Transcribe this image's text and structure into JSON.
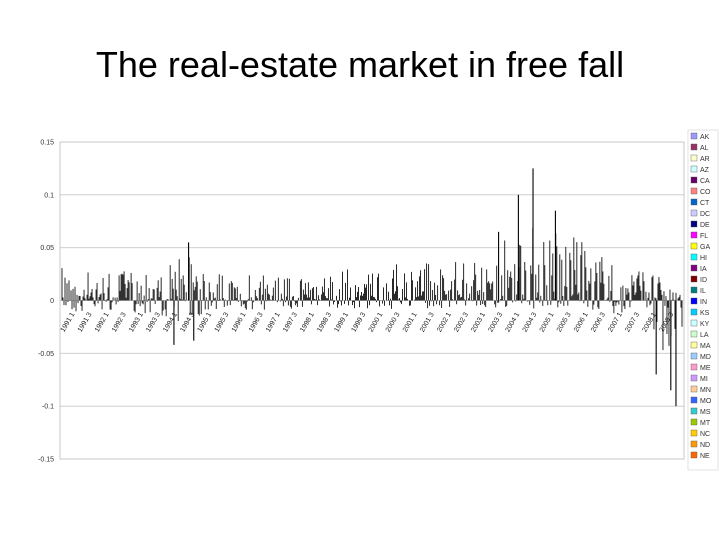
{
  "slide": {
    "title": "The real-estate market in free fall"
  },
  "chart_data": {
    "type": "bar",
    "title": "",
    "xlabel": "",
    "ylabel": "",
    "ylim": [
      -0.15,
      0.15
    ],
    "yticks": [
      0.15,
      0.1,
      0.05,
      0,
      -0.05,
      -0.1,
      -0.15
    ],
    "ytick_labels": [
      "0.15",
      "0.1",
      "0.05",
      "0",
      "-0.05",
      "-0.1",
      "-0.15"
    ],
    "grid": true,
    "legend": "right",
    "categories": [
      "1991 1",
      "1991 3",
      "1992 1",
      "1992 3",
      "1993 1",
      "1993 3",
      "1994 1",
      "1994 3",
      "1995 1",
      "1995 3",
      "1996 1",
      "1996 3",
      "1997 1",
      "1997 3",
      "1998 1",
      "1998 3",
      "1999 1",
      "1999 3",
      "2000 1",
      "2000 3",
      "2001 1",
      "2001 3",
      "2002 1",
      "2002 3",
      "2003 1",
      "2003 3",
      "2004 1",
      "2004 3",
      "2005 1",
      "2005 3",
      "2006 1",
      "2006 3",
      "2007 1",
      "2007 3",
      "2008 1",
      "2008 3"
    ],
    "envelope": {
      "upper": [
        0.035,
        0.03,
        0.03,
        0.028,
        0.03,
        0.03,
        0.035,
        0.05,
        0.03,
        0.028,
        0.027,
        0.025,
        0.025,
        0.026,
        0.026,
        0.028,
        0.03,
        0.032,
        0.035,
        0.035,
        0.036,
        0.037,
        0.038,
        0.039,
        0.045,
        0.06,
        0.07,
        0.075,
        0.07,
        0.06,
        0.05,
        0.04,
        0.035,
        0.03,
        0.02,
        0.015
      ],
      "lower": [
        -0.01,
        -0.012,
        -0.01,
        -0.01,
        -0.012,
        -0.012,
        -0.018,
        -0.022,
        -0.012,
        -0.01,
        -0.01,
        -0.01,
        -0.008,
        -0.008,
        -0.008,
        -0.008,
        -0.008,
        -0.008,
        -0.008,
        -0.008,
        -0.008,
        -0.008,
        -0.008,
        -0.008,
        -0.008,
        -0.008,
        -0.008,
        -0.008,
        -0.008,
        -0.008,
        -0.01,
        -0.012,
        -0.015,
        -0.02,
        -0.05,
        -0.075
      ]
    },
    "spikes": [
      {
        "x": "1994 3",
        "value": 0.055
      },
      {
        "x": "1994 1",
        "value": -0.042
      },
      {
        "x": "1994 3",
        "value": -0.038
      },
      {
        "x": "2004 3",
        "value": 0.125
      },
      {
        "x": "2004 1",
        "value": 0.1
      },
      {
        "x": "2005 1",
        "value": 0.085
      },
      {
        "x": "2003 3",
        "value": 0.065
      },
      {
        "x": "2008 1",
        "value": -0.07
      },
      {
        "x": "2008 3",
        "value": -0.1
      },
      {
        "x": "2008 3",
        "value": -0.085
      }
    ],
    "legend_series": [
      {
        "name": "AK",
        "color": "#9999ff"
      },
      {
        "name": "AL",
        "color": "#993366"
      },
      {
        "name": "AR",
        "color": "#ffffcc"
      },
      {
        "name": "AZ",
        "color": "#ccffff"
      },
      {
        "name": "CA",
        "color": "#660066"
      },
      {
        "name": "CO",
        "color": "#ff8080"
      },
      {
        "name": "CT",
        "color": "#0066cc"
      },
      {
        "name": "DC",
        "color": "#ccccff"
      },
      {
        "name": "DE",
        "color": "#000080"
      },
      {
        "name": "FL",
        "color": "#ff00ff"
      },
      {
        "name": "GA",
        "color": "#ffff00"
      },
      {
        "name": "HI",
        "color": "#00ffff"
      },
      {
        "name": "IA",
        "color": "#800080"
      },
      {
        "name": "ID",
        "color": "#800000"
      },
      {
        "name": "IL",
        "color": "#008080"
      },
      {
        "name": "IN",
        "color": "#0000ff"
      },
      {
        "name": "KS",
        "color": "#00ccff"
      },
      {
        "name": "KY",
        "color": "#ccffff"
      },
      {
        "name": "LA",
        "color": "#ccffcc"
      },
      {
        "name": "MA",
        "color": "#ffff99"
      },
      {
        "name": "MD",
        "color": "#99ccff"
      },
      {
        "name": "ME",
        "color": "#ff99cc"
      },
      {
        "name": "MI",
        "color": "#cc99ff"
      },
      {
        "name": "MN",
        "color": "#ffcc99"
      },
      {
        "name": "MO",
        "color": "#3366ff"
      },
      {
        "name": "MS",
        "color": "#33cccc"
      },
      {
        "name": "MT",
        "color": "#99cc00"
      },
      {
        "name": "NC",
        "color": "#ffcc00"
      },
      {
        "name": "ND",
        "color": "#ff9900"
      },
      {
        "name": "NE",
        "color": "#ff6600"
      }
    ]
  }
}
